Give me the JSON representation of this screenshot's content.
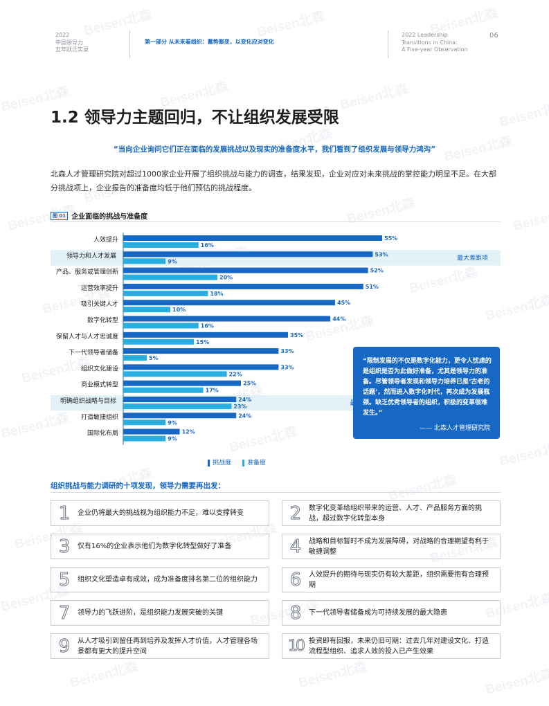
{
  "watermark": "Beisen北森",
  "header": {
    "left_lines": [
      "2022",
      "中国领导力",
      "五年跃迁实录"
    ],
    "part": "第一部分  从未来看组织：蓄势聚变，以变化应对变化",
    "right_lines": [
      "2022 Leadership",
      "Transitions in China:",
      "A Five-year Observation"
    ],
    "page": "06"
  },
  "title": "1.2 领导力主题回归，不让组织发展受限",
  "quote": "“当向企业询问它们正在面临的发展挑战以及现实的准备度水平，我们看到了组织发展与领导力鸿沟”",
  "paragraph": "北森人才管理研究院对超过1000家企业开展了组织挑战与能力的调查，结果发现，企业对应对未来挑战的掌控能力明显不足。在大部分挑战项上，企业报告的准备度均低于他们预估的挑战程度。",
  "figure": {
    "badge": "图 01",
    "title": "企业面临的挑战与准备度"
  },
  "chart_data": {
    "type": "bar",
    "orientation": "horizontal",
    "categories": [
      "人效提升",
      "领导力和人才发展",
      "产品、服务或管理创新",
      "运营效率提升",
      "吸引关键人才",
      "数字化转型",
      "保留人才与人才忠诚度",
      "下一代领导者储备",
      "组织文化建设",
      "商业模式转型",
      "明确组织战略与目标",
      "打造敏捷组织",
      "国际化布局"
    ],
    "series": [
      {
        "name": "挑战度",
        "color": "#1767c4",
        "values": [
          55,
          53,
          52,
          51,
          45,
          44,
          35,
          33,
          33,
          25,
          24,
          24,
          12
        ]
      },
      {
        "name": "准备度",
        "color": "#29aee0",
        "values": [
          16,
          9,
          20,
          18,
          10,
          16,
          15,
          5,
          22,
          17,
          23,
          9,
          9
        ]
      }
    ],
    "highlights": [
      {
        "category": "领导力和人才发展",
        "label": "最大差距项"
      },
      {
        "category": "明确组织战略与目标",
        "label": "最小差距项"
      }
    ],
    "value_suffix": "%",
    "legend": "bottom"
  },
  "quote_box": {
    "text": "“限制发展的不仅是数字化能力，更令人忧虑的是组织是否为此做好准备，尤其是领导力的准备。尽管领导者发现和领导力培养已是‘古老的话题’，然而进入数字化时代，再次成为发展瓶颈。缺乏优秀领导者的组织，积极的变革很难发生。”",
    "source": "—— 北森人才管理研究院"
  },
  "findings_title": "组织挑战与能力调研的十项发现，领导力需要再出发：",
  "findings": [
    {
      "num": "1",
      "text": "企业仍将最大的挑战视为组织能力不足，难以支撑转变"
    },
    {
      "num": "2",
      "text": "数字化变革给组织带来的运营、人才、产品服务方面的挑战，超过数字化转型本身"
    },
    {
      "num": "3",
      "text": "仅有16%的企业表示他们为数字化转型做好了准备"
    },
    {
      "num": "4",
      "text": "战略和目标暂时不成为发展障碍，对战略的合理期望有利于敏捷调整"
    },
    {
      "num": "5",
      "text": "组织文化塑造卓有成效，成为准备度排名第二位的组织能力"
    },
    {
      "num": "6",
      "text": "人效提升的期待与现实仍有较大差距，组织需要抱有合理预期"
    },
    {
      "num": "7",
      "text": "领导力的飞跃进阶，是组织能力发展突破的关键"
    },
    {
      "num": "8",
      "text": "下一代领导者储备成为可持续发展的最大隐患"
    },
    {
      "num": "9",
      "text": "从人才吸引到留任再到培养及发挥人才价值，人才管理各场景都有更大的提升空间"
    },
    {
      "num": "10",
      "text": "投资即有回报，未来仍旧可期：过去几年对建设文化、打造流程型组织、追求人效的投入已产生效果"
    }
  ]
}
